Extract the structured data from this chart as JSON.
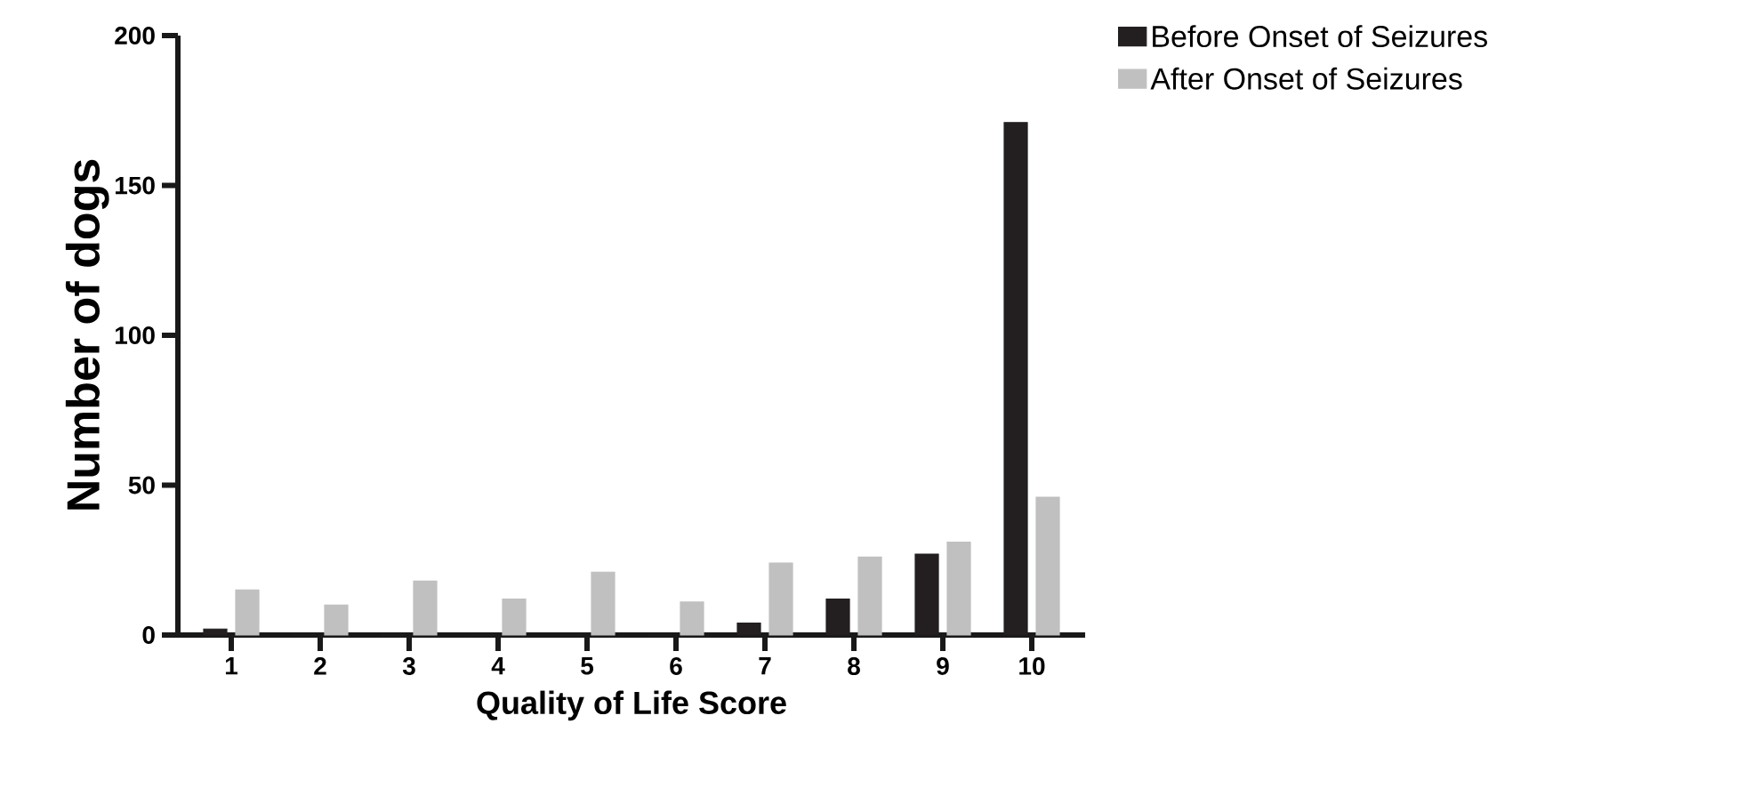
{
  "chart_data": {
    "type": "bar",
    "xlabel": "Quality of Life Score",
    "ylabel": "Number of dogs",
    "categories": [
      "1",
      "2",
      "3",
      "4",
      "5",
      "6",
      "7",
      "8",
      "9",
      "10"
    ],
    "series": [
      {
        "name": "Before Onset of Seizures",
        "color": "#231f20",
        "values": [
          2,
          0,
          0,
          0,
          0,
          0,
          4,
          12,
          27,
          171
        ]
      },
      {
        "name": "After Onset of Seizures",
        "color": "#c0c0c0",
        "values": [
          15,
          10,
          18,
          12,
          21,
          11,
          24,
          26,
          31,
          46
        ]
      }
    ],
    "ylim": [
      0,
      200
    ],
    "yticks": [
      0,
      50,
      100,
      150,
      200
    ],
    "grid": false,
    "legend": "top right"
  }
}
